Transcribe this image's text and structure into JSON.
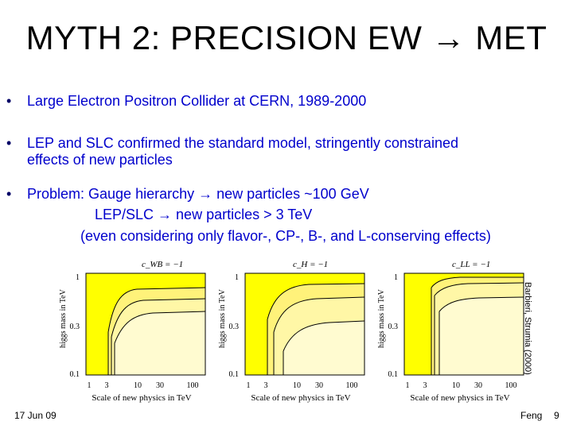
{
  "slide": {
    "title": "MYTH 2: PRECISION EW",
    "title_tail": "MET",
    "arrow_glyph": "→",
    "bullets": [
      {
        "lines": [
          "Large Electron Positron Collider at CERN, 1989-2000"
        ]
      },
      {
        "lines": [
          "LEP and SLC confirmed the standard model, stringently constrained",
          "effects of new particles"
        ]
      },
      {
        "lines": [
          "Problem: Gauge hierarchy → new particles ~100 GeV",
          "LEP/SLC → new particles > 3 TeV",
          "(even considering only flavor-, CP-, B-, and L-conserving effects)"
        ]
      }
    ],
    "plots": [
      {
        "label": "c_WB = −1"
      },
      {
        "label": "c_H = −1"
      },
      {
        "label": "c_LL = −1"
      }
    ],
    "axes": {
      "ylabel": "higgs mass in TeV",
      "xlabel": "Scale of new physics in TeV",
      "yticks": [
        "1",
        "0.3",
        "0.1"
      ],
      "xticks": [
        "1",
        "3",
        "10",
        "30",
        "100"
      ]
    },
    "credit": "Barbieri, Strumia (2000)",
    "footer": {
      "date": "17 Jun 09",
      "author": "Feng",
      "page": "9"
    },
    "colors": {
      "bullet_text": "#0000cc",
      "excluded": "#ffff00",
      "allowed": "#fffbd0"
    }
  }
}
